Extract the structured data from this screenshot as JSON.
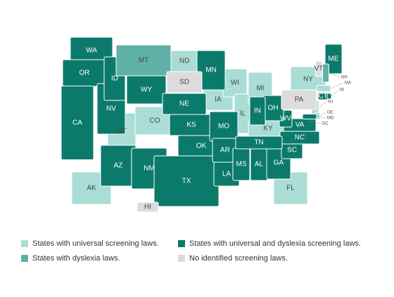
{
  "legend": [
    {
      "label": "States with universal screening laws.",
      "color": "#a9ddd6",
      "states": [
        "ND",
        "UT",
        "CO",
        "IA",
        "WI",
        "IL",
        "MI",
        "KY",
        "NY",
        "FL",
        "AK",
        "MA",
        "NJ",
        "DE",
        "DC"
      ]
    },
    {
      "label": "States with universal and dyslexia screening laws.",
      "color": "#0b7a6b",
      "states": [
        "WA",
        "OR",
        "CA",
        "NV",
        "ID",
        "WY",
        "AZ",
        "NM",
        "NE",
        "KS",
        "OK",
        "TX",
        "MN",
        "MO",
        "AR",
        "LA",
        "MS",
        "AL",
        "GA",
        "SC",
        "NC",
        "TN",
        "VA",
        "WV",
        "OH",
        "IN",
        "ME",
        "CT",
        "RI",
        "MD"
      ]
    },
    {
      "label": "States with dyslexia laws.",
      "color": "#5fb1a6",
      "states": [
        "MT",
        "NH"
      ]
    },
    {
      "label": "No identified screening laws.",
      "color": "#dcdcdc",
      "states": [
        "SD",
        "PA",
        "VT",
        "HI"
      ]
    }
  ]
}
